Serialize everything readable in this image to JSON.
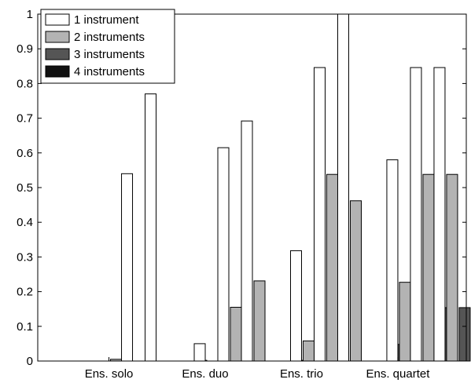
{
  "chart_data": {
    "type": "bar",
    "title": "",
    "xlabel": "",
    "ylabel": "",
    "ylim": [
      0,
      1
    ],
    "yticks": [
      "0",
      "0.1",
      "0.2",
      "0.3",
      "0.4",
      "0.5",
      "0.6",
      "0.7",
      "0.8",
      "0.9",
      "1"
    ],
    "grid": false,
    "legend_position": "top-left",
    "categories": [
      "Ens. solo",
      "Ens. duo",
      "Ens. trio",
      "Ens. quartet"
    ],
    "series": [
      {
        "name": "1 instrument",
        "color": "#ffffff"
      },
      {
        "name": "2 instruments",
        "color": "#b3b3b3"
      },
      {
        "name": "3 instruments",
        "color": "#555555"
      },
      {
        "name": "4 instruments",
        "color": "#111111"
      }
    ],
    "groups": [
      {
        "category": "Ens. solo",
        "subgroups": [
          [
            0,
            0,
            0,
            0
          ],
          [
            0,
            0.005,
            0,
            0
          ],
          [
            0.54,
            0,
            0,
            0
          ],
          [
            0.77,
            0,
            0,
            0
          ]
        ]
      },
      {
        "category": "Ens. duo",
        "subgroups": [
          [
            0,
            0,
            0.002,
            0
          ],
          [
            0.05,
            0,
            0,
            0
          ],
          [
            0.615,
            0.155,
            0,
            0
          ],
          [
            0.692,
            0.231,
            0,
            0
          ]
        ]
      },
      {
        "category": "Ens. trio",
        "subgroups": [
          [
            0,
            0,
            0.002,
            0
          ],
          [
            0.318,
            0.058,
            0,
            0
          ],
          [
            0.846,
            0.538,
            0,
            0
          ],
          [
            1.0,
            0.462,
            0,
            0
          ]
        ]
      },
      {
        "category": "Ens. quartet",
        "subgroups": [
          [
            0,
            0,
            0.048,
            0.002
          ],
          [
            0.58,
            0.227,
            0,
            0
          ],
          [
            0.846,
            0.538,
            0.154,
            0
          ],
          [
            0.846,
            0.538,
            0.154,
            0
          ]
        ]
      }
    ]
  }
}
